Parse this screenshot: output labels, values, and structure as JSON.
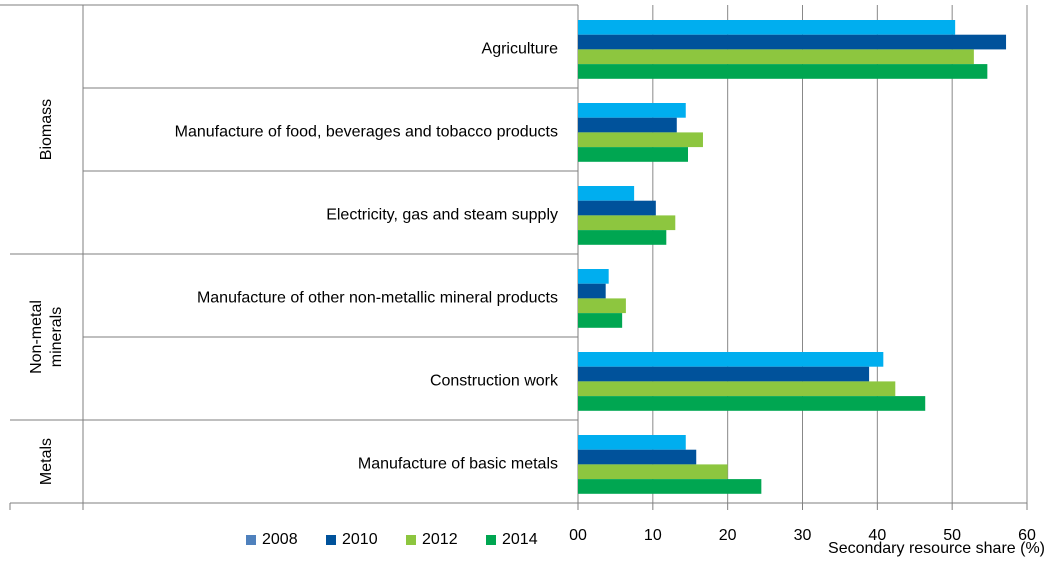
{
  "chart_data": {
    "type": "bar",
    "orientation": "horizontal",
    "categories": [
      "Agriculture",
      "Manufacture of food, beverages and tobacco products",
      "Electricity, gas and steam supply",
      "Manufacture of other non-metallic mineral products",
      "Construction work",
      "Manufacture of basic metals"
    ],
    "groups": [
      {
        "name": [
          "Biomass"
        ],
        "size": 3
      },
      {
        "name": [
          "Non-metal",
          "minerals"
        ],
        "size": 2
      },
      {
        "name": [
          "Metals"
        ],
        "size": 1
      }
    ],
    "series": [
      {
        "name": "2008",
        "color": "#00aeef",
        "legend_color": "#4f81bd",
        "values": [
          50.4,
          14.4,
          7.5,
          4.1,
          40.8,
          14.4
        ]
      },
      {
        "name": "2010",
        "color": "#00529b",
        "values": [
          57.2,
          13.2,
          10.4,
          3.7,
          38.9,
          15.8
        ]
      },
      {
        "name": "2012",
        "color": "#8dc63f",
        "values": [
          52.9,
          16.7,
          13.0,
          6.4,
          42.4,
          20.0
        ]
      },
      {
        "name": "2014",
        "color": "#00a651",
        "values": [
          54.7,
          14.7,
          11.8,
          5.9,
          46.4,
          24.5
        ]
      }
    ],
    "xlabel": "Secondary resource share (%)",
    "xlim": [
      0,
      60
    ],
    "xticks": [
      {
        "value": 0,
        "label": "00"
      },
      10,
      20,
      30,
      40,
      50,
      60
    ],
    "grid": true,
    "legend": "bottom"
  }
}
